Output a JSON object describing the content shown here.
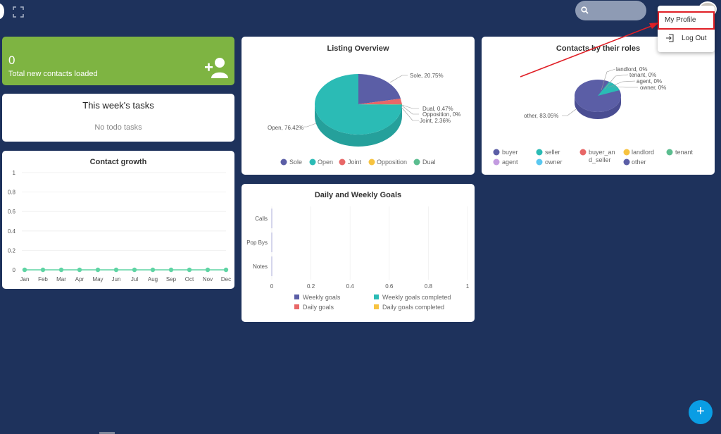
{
  "summary": {
    "count": "0",
    "label": "Total new contacts loaded"
  },
  "tasks": {
    "title": "This week's tasks",
    "empty": "No todo tasks"
  },
  "contact_growth": {
    "title": "Contact growth",
    "months": [
      "Jan",
      "Feb",
      "Mar",
      "Apr",
      "May",
      "Jun",
      "Jul",
      "Aug",
      "Sep",
      "Oct",
      "Nov",
      "Dec"
    ],
    "values": [
      0,
      0,
      0,
      0,
      0,
      0,
      0,
      0,
      0,
      0,
      0,
      0
    ],
    "y_ticks": [
      "1",
      "0.8",
      "0.6",
      "0.4",
      "0.2",
      "0"
    ],
    "color": "#5fd4a4"
  },
  "listing_overview": {
    "title": "Listing Overview",
    "labels": {
      "sole": "Sole, 20.75%",
      "dual": "Dual, 0.47%",
      "opposition": "Opposition, 0%",
      "joint": "Joint, 2.36%",
      "open": "Open, 76.42%"
    },
    "legend": [
      "Sole",
      "Open",
      "Joint",
      "Opposition",
      "Dual"
    ],
    "colors": [
      "#5b5ea6",
      "#2bbbb5",
      "#e86767",
      "#f7c340",
      "#5bbd8f"
    ]
  },
  "contacts_by_roles": {
    "title": "Contacts by their roles",
    "labels": {
      "landlord": "landlord, 0%",
      "tenant": "tenant, 0%",
      "agent": "agent, 0%",
      "owner": "owner, 0%",
      "other": "other, 83.05%"
    },
    "legend": [
      "buyer",
      "seller",
      "buyer_an",
      "d_seller",
      "landlord",
      "tenant",
      "agent",
      "owner",
      "other"
    ],
    "legend_colors": {
      "buyer": "#5b5ea6",
      "seller": "#2bbbb5",
      "buyer_and_seller": "#e86767",
      "landlord": "#f7c340",
      "tenant": "#5bbd8f",
      "agent": "#c39be0",
      "owner": "#5ac8f0",
      "other": "#5b5ea6"
    }
  },
  "daily_goals": {
    "title": "Daily and Weekly Goals",
    "categories": [
      "Calls",
      "Pop Bys",
      "Notes"
    ],
    "x_ticks": [
      "0",
      "0.2",
      "0.4",
      "0.6",
      "0.8",
      "1"
    ],
    "legend": [
      "Weekly goals",
      "Weekly goals completed",
      "Daily goals",
      "Daily goals completed"
    ],
    "colors": [
      "#5b5ea6",
      "#2bbbb5",
      "#e86767",
      "#f7c340"
    ]
  },
  "user_menu": {
    "profile": "My Profile",
    "logout": "Log Out"
  },
  "fab": {
    "label": "+"
  }
}
